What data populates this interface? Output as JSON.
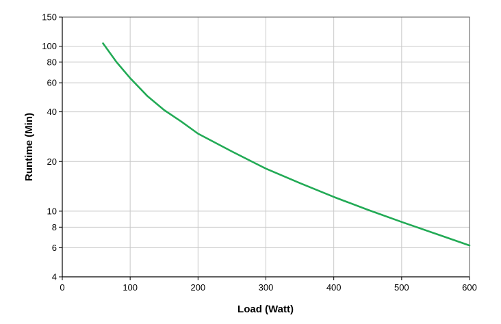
{
  "chart_data": {
    "type": "line",
    "title": "",
    "xlabel": "Load (Watt)",
    "ylabel": "Runtime (Min)",
    "xlim": [
      0,
      600
    ],
    "ylim": [
      4,
      150
    ],
    "yscale": "log",
    "grid": true,
    "x_ticks": [
      "0",
      "100",
      "200",
      "300",
      "400",
      "500",
      "600"
    ],
    "y_ticks": [
      "150",
      "100",
      "80",
      "60",
      "40",
      "20",
      "10",
      "8",
      "6",
      "4"
    ],
    "series": [
      {
        "color": "#22aa55",
        "x": [
          60,
          80,
          100,
          125,
          150,
          175,
          200,
          250,
          300,
          350,
          400,
          450,
          500,
          550,
          600
        ],
        "y": [
          104,
          80,
          64,
          50,
          41,
          35,
          29.5,
          23,
          18.1,
          14.8,
          12.2,
          10.2,
          8.6,
          7.3,
          6.2
        ]
      }
    ]
  }
}
